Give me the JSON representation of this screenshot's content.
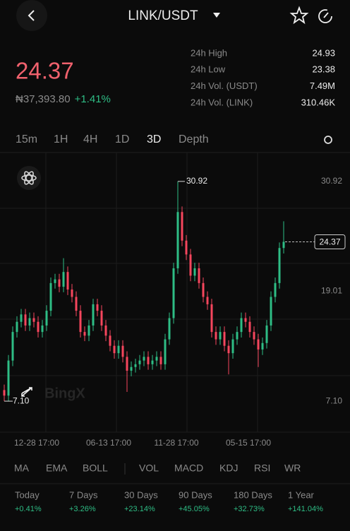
{
  "header": {
    "pair": "LINK/USDT"
  },
  "ticker": {
    "price": "24.37",
    "fiat": "₦37,393.80",
    "change": "+1.41%",
    "stats": [
      {
        "label": "24h High",
        "value": "24.93"
      },
      {
        "label": "24h Low",
        "value": "23.38"
      },
      {
        "label": "24h Vol. (USDT)",
        "value": "7.49M"
      },
      {
        "label": "24h Vol. (LINK)",
        "value": "310.46K"
      }
    ]
  },
  "tabs": [
    "15m",
    "1H",
    "4H",
    "1D",
    "3D",
    "Depth"
  ],
  "active_tab": 4,
  "chart_data": {
    "type": "candlestick",
    "watermark": "BingX",
    "categories": [
      null,
      null,
      null,
      null,
      null,
      null,
      null,
      "12-28 17:00",
      null,
      null,
      null,
      null,
      null,
      null,
      null,
      null,
      null,
      null,
      null,
      null,
      null,
      null,
      null,
      null,
      "06-13 17:00",
      null,
      null,
      null,
      null,
      null,
      null,
      null,
      null,
      null,
      null,
      null,
      null,
      null,
      null,
      null,
      "11-28 17:00",
      null,
      null,
      null,
      null,
      null,
      null,
      null,
      null,
      null,
      null,
      null,
      null,
      null,
      null,
      null,
      null,
      "05-15 17:00",
      null,
      null,
      null,
      null,
      null,
      null,
      null,
      null,
      null
    ],
    "open": [
      8.3,
      7.7,
      11.5,
      14.6,
      15.7,
      16.5,
      15.3,
      16.1,
      15.7,
      14.6,
      15.3,
      16.9,
      19.9,
      20.3,
      19.5,
      21.1,
      19.2,
      18.4,
      16.9,
      14.6,
      14.2,
      15.3,
      17.6,
      16.9,
      15.3,
      14.2,
      13.1,
      12.3,
      13.1,
      11.9,
      10.4,
      10.8,
      11.1,
      11.5,
      11.9,
      11.1,
      11.5,
      11.9,
      11.1,
      13.8,
      16.1,
      21.5,
      27.6,
      24.5,
      23.0,
      20.7,
      21.5,
      19.9,
      18.4,
      17.6,
      14.6,
      13.8,
      14.6,
      13.1,
      12.3,
      13.8,
      14.6,
      16.1,
      15.7,
      14.6,
      13.8,
      12.7,
      13.4,
      15.3,
      18.4,
      19.9,
      23.7
    ],
    "high": [
      8.9,
      12.1,
      15.2,
      16.3,
      17.1,
      17.1,
      16.7,
      16.7,
      16.3,
      15.9,
      17.5,
      20.5,
      20.9,
      20.9,
      22.6,
      21.7,
      19.8,
      19.0,
      17.5,
      15.2,
      15.9,
      18.2,
      18.2,
      17.5,
      15.9,
      14.8,
      13.7,
      13.7,
      13.7,
      12.5,
      11.4,
      11.7,
      12.1,
      12.5,
      12.5,
      12.1,
      12.5,
      12.5,
      14.4,
      16.7,
      22.1,
      30.92,
      28.2,
      25.1,
      23.6,
      22.1,
      22.1,
      20.5,
      19.0,
      18.2,
      15.2,
      15.2,
      15.2,
      13.7,
      14.4,
      15.2,
      16.7,
      16.7,
      16.3,
      15.2,
      14.4,
      14.0,
      15.9,
      19.0,
      20.5,
      24.3,
      26.6
    ],
    "low": [
      7.1,
      7.1,
      10.9,
      14.0,
      15.1,
      14.7,
      14.7,
      15.1,
      14.0,
      14.0,
      14.7,
      16.3,
      19.3,
      18.9,
      18.9,
      18.6,
      17.8,
      16.3,
      14.0,
      13.6,
      13.6,
      14.7,
      16.3,
      14.7,
      13.6,
      12.5,
      11.7,
      11.7,
      11.3,
      8.1,
      9.8,
      10.2,
      10.5,
      10.9,
      10.5,
      10.5,
      10.9,
      10.5,
      10.5,
      13.2,
      15.5,
      20.9,
      23.9,
      22.4,
      20.1,
      20.1,
      19.3,
      17.8,
      17.0,
      14.0,
      13.2,
      13.2,
      12.5,
      10.0,
      11.7,
      13.2,
      14.0,
      15.1,
      14.0,
      13.2,
      10.8,
      12.1,
      12.8,
      14.7,
      17.8,
      19.3,
      23.1
    ],
    "close": [
      7.7,
      11.5,
      14.6,
      15.7,
      16.5,
      15.3,
      16.1,
      15.7,
      14.6,
      15.3,
      16.9,
      19.9,
      20.3,
      19.5,
      21.1,
      19.2,
      18.4,
      16.9,
      14.6,
      14.2,
      15.3,
      17.6,
      16.9,
      15.3,
      14.2,
      13.1,
      12.3,
      13.1,
      11.9,
      10.4,
      10.8,
      11.1,
      11.5,
      11.9,
      11.1,
      11.5,
      11.9,
      11.1,
      13.8,
      16.1,
      21.5,
      27.6,
      24.5,
      23.0,
      20.7,
      21.5,
      19.9,
      18.4,
      17.6,
      14.6,
      13.8,
      14.6,
      13.1,
      12.3,
      13.8,
      14.6,
      16.1,
      15.7,
      14.6,
      13.8,
      12.7,
      13.4,
      15.3,
      18.4,
      19.9,
      23.7,
      24.37
    ],
    "ylim": [
      3.74,
      34.05
    ],
    "yticks": [
      30.92,
      19.01,
      {
        "value": 7.1,
        "label": "7.10"
      }
    ],
    "annotations": {
      "high": {
        "index": 41,
        "label": "30.92"
      },
      "low": {
        "index": 0,
        "label": "7.10"
      },
      "last": {
        "index": 66,
        "label": "24.37"
      }
    },
    "up_color": "#2ebd85",
    "down_color": "#f6465d"
  },
  "indicators": [
    "MA",
    "EMA",
    "BOLL",
    "VOL",
    "MACD",
    "KDJ",
    "RSI",
    "WR"
  ],
  "performance": [
    {
      "period": "Today",
      "change": "+0.41%"
    },
    {
      "period": "7 Days",
      "change": "+3.26%"
    },
    {
      "period": "30 Days",
      "change": "+23.14%"
    },
    {
      "period": "90 Days",
      "change": "+45.05%"
    },
    {
      "period": "180 Days",
      "change": "+32.73%"
    },
    {
      "period": "1 Year",
      "change": "+141.04%"
    }
  ]
}
